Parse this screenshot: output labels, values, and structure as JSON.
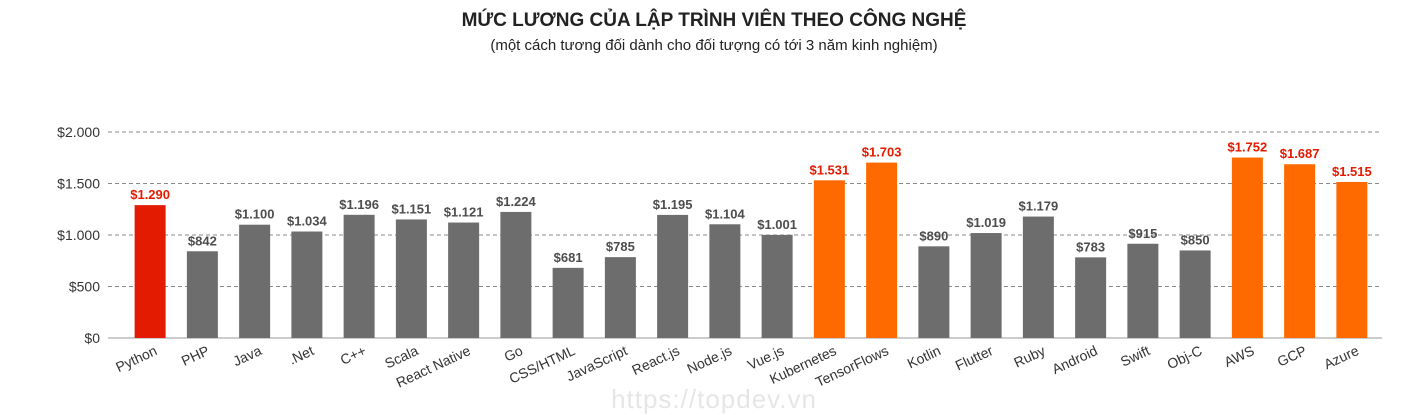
{
  "title": "MỨC LƯƠNG CỦA LẬP TRÌNH VIÊN THEO CÔNG NGHỆ",
  "subtitle": "(một cách tương đối dành cho đối tượng có tới 3 năm kinh nghiệm)",
  "watermark": "https://topdev.vn",
  "colors": {
    "highlight": "#e31b00",
    "orange": "#ff6a00",
    "gray": "#6d6d6d",
    "label_gray": "#4d4d4d",
    "label_red": "#e31b00"
  },
  "chart_data": {
    "type": "bar",
    "ylim": [
      0,
      2000
    ],
    "yticks": [
      0,
      500,
      1000,
      1500,
      2000
    ],
    "ytick_labels": [
      "$0",
      "$500",
      "$1.000",
      "$1.500",
      "$2.000"
    ],
    "grid": "dashed horizontal",
    "categories": [
      "Python",
      "PHP",
      "Java",
      ".Net",
      "C++",
      "Scala",
      "React Native",
      "Go",
      "CSS/HTML",
      "JavaScript",
      "React.js",
      "Node.js",
      "Vue.js",
      "Kubernetes",
      "TensorFlows",
      "Kotlin",
      "Flutter",
      "Ruby",
      "Android",
      "Swift",
      "Obj-C",
      "AWS",
      "GCP",
      "Azure"
    ],
    "values": [
      1290,
      842,
      1100,
      1034,
      1196,
      1151,
      1121,
      1224,
      681,
      785,
      1195,
      1104,
      1001,
      1531,
      1703,
      890,
      1019,
      1179,
      783,
      915,
      850,
      1752,
      1687,
      1515
    ],
    "value_labels": [
      "$1.290",
      "$842",
      "$1.100",
      "$1.034",
      "$1.196",
      "$1.151",
      "$1.121",
      "$1.224",
      "$681",
      "$785",
      "$1.195",
      "$1.104",
      "$1.001",
      "$1.531",
      "$1.703",
      "$890",
      "$1.019",
      "$1.179",
      "$783",
      "$915",
      "$850",
      "$1.752",
      "$1.687",
      "$1.515"
    ],
    "bar_colors": [
      "red",
      "gray",
      "gray",
      "gray",
      "gray",
      "gray",
      "gray",
      "gray",
      "gray",
      "gray",
      "gray",
      "gray",
      "gray",
      "orange",
      "orange",
      "gray",
      "gray",
      "gray",
      "gray",
      "gray",
      "gray",
      "orange",
      "orange",
      "orange"
    ]
  }
}
